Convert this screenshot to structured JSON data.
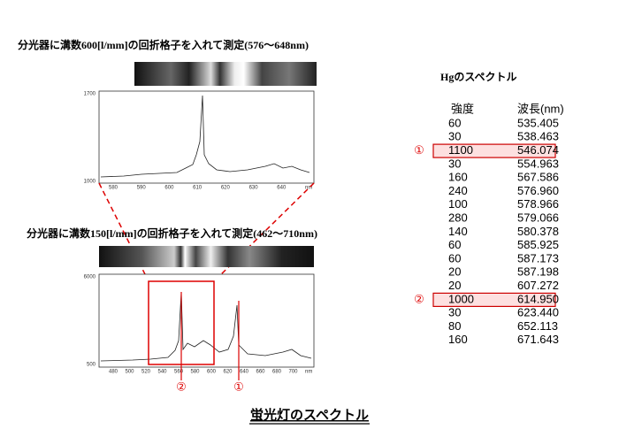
{
  "header": {
    "top_title": "分光器に溝数600[l/mm]の回折格子を入れて測定(576～648nm)",
    "bottom_title": "分光器に溝数150[l/mm]の回折格子を入れて測定(462～710nm)",
    "caption": "蛍光灯のスペクトル"
  },
  "plot_top": {
    "y_labels": [
      "1700",
      "1000"
    ],
    "x_labels": [
      "580",
      "590",
      "600",
      "610",
      "620",
      "630",
      "640"
    ],
    "unit": "nm"
  },
  "plot_bottom": {
    "y_labels": [
      "6000",
      "500"
    ],
    "x_labels": [
      "480",
      "500",
      "520",
      "540",
      "560",
      "580",
      "600",
      "620",
      "640",
      "660",
      "680",
      "700"
    ],
    "unit": "nm",
    "markers": [
      "②",
      "①"
    ]
  },
  "table": {
    "title": "Hgのスペクトル",
    "headers": [
      "強度",
      "波長(nm)"
    ],
    "rows": [
      {
        "intensity": "60",
        "wavelength": "535.405"
      },
      {
        "intensity": "30",
        "wavelength": "538.463"
      },
      {
        "intensity": "1100",
        "wavelength": "546.074",
        "mark": "①"
      },
      {
        "intensity": "30",
        "wavelength": "554.963"
      },
      {
        "intensity": "160",
        "wavelength": "567.586"
      },
      {
        "intensity": "240",
        "wavelength": "576.960"
      },
      {
        "intensity": "100",
        "wavelength": "578.966"
      },
      {
        "intensity": "280",
        "wavelength": "579.066"
      },
      {
        "intensity": "140",
        "wavelength": "580.378"
      },
      {
        "intensity": "60",
        "wavelength": "585.925"
      },
      {
        "intensity": "60",
        "wavelength": "587.173"
      },
      {
        "intensity": "20",
        "wavelength": "587.198"
      },
      {
        "intensity": "20",
        "wavelength": "607.272"
      },
      {
        "intensity": "1000",
        "wavelength": "614.950",
        "mark": "②"
      },
      {
        "intensity": "30",
        "wavelength": "623.440"
      },
      {
        "intensity": "80",
        "wavelength": "652.113"
      },
      {
        "intensity": "160",
        "wavelength": "671.643"
      }
    ]
  }
}
